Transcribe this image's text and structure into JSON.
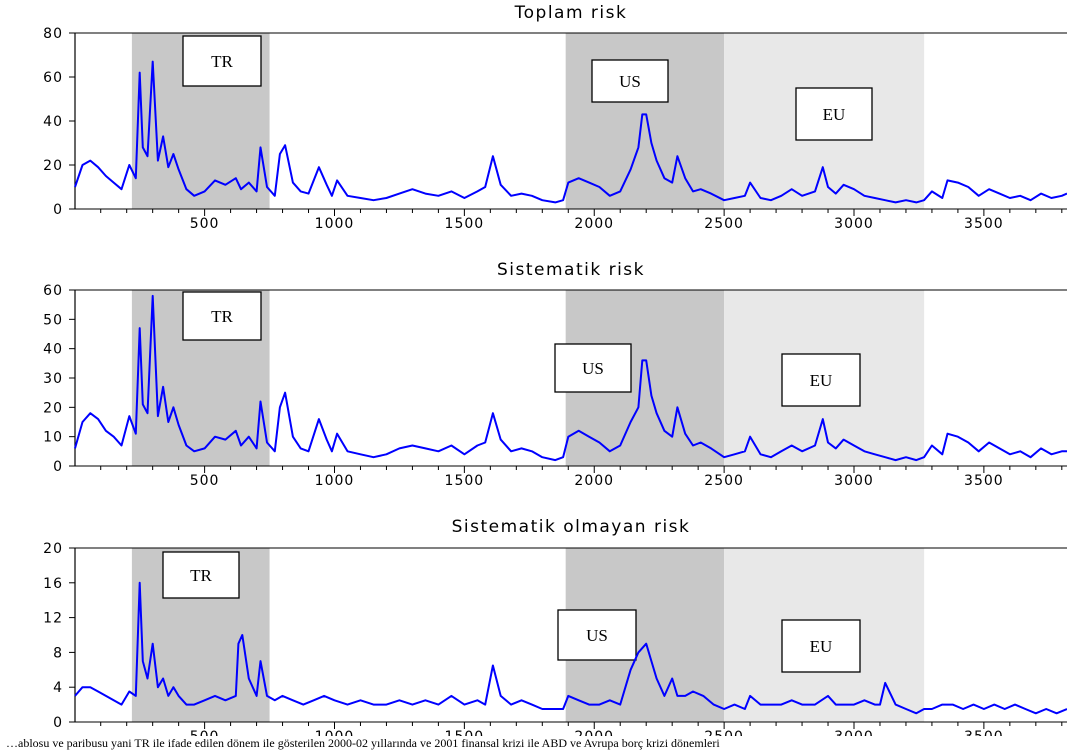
{
  "footer_note": "…ablosu ve paribusu yani TR ile ifade edilen dönem ile gösterilen 2000-02 yıllarında ve 2001 finansal krizi ile ABD ve Avrupa borç krizi dönemleri",
  "colors": {
    "line": "#0000ff",
    "shade_dark": "#c8c8c8",
    "shade_light": "#e8e8e8",
    "box_border": "#000000"
  },
  "chart_data": [
    {
      "type": "line",
      "title": "Toplam risk",
      "xlabel": "",
      "ylabel": "",
      "xlim": [
        1,
        3820
      ],
      "ylim": [
        0,
        80
      ],
      "x_ticks": [
        500,
        1000,
        1500,
        2000,
        2500,
        3000,
        3500
      ],
      "y_ticks": [
        0,
        20,
        40,
        60,
        80
      ],
      "y_tick_labels": [
        "0",
        "20",
        "40",
        "60",
        "80"
      ],
      "regions": [
        {
          "label": "TR",
          "x": [
            220,
            750
          ],
          "shade": "dark"
        },
        {
          "label": "US",
          "x": [
            1890,
            2500
          ],
          "shade": "dark"
        },
        {
          "label": "EU",
          "x": [
            2500,
            3270
          ],
          "shade": "light"
        }
      ],
      "series": [
        {
          "x": [
            1,
            30,
            60,
            90,
            120,
            150,
            180,
            210,
            235,
            250,
            262,
            280,
            300,
            320,
            340,
            360,
            380,
            400,
            430,
            460,
            500,
            540,
            580,
            620,
            640,
            670,
            700,
            715,
            740,
            770,
            790,
            810,
            840,
            870,
            900,
            940,
            970,
            990,
            1010,
            1050,
            1100,
            1150,
            1200,
            1250,
            1300,
            1350,
            1400,
            1450,
            1500,
            1550,
            1580,
            1610,
            1640,
            1680,
            1720,
            1760,
            1800,
            1850,
            1880,
            1900,
            1940,
            1980,
            2020,
            2060,
            2100,
            2140,
            2170,
            2185,
            2200,
            2220,
            2240,
            2270,
            2300,
            2320,
            2350,
            2380,
            2410,
            2450,
            2500,
            2540,
            2580,
            2600,
            2640,
            2680,
            2720,
            2760,
            2800,
            2850,
            2880,
            2900,
            2930,
            2960,
            3000,
            3040,
            3080,
            3120,
            3160,
            3200,
            3240,
            3270,
            3300,
            3340,
            3360,
            3400,
            3440,
            3480,
            3520,
            3560,
            3600,
            3640,
            3680,
            3720,
            3760,
            3800,
            3820
          ],
          "values": [
            10,
            20,
            22,
            19,
            15,
            12,
            9,
            20,
            14,
            62,
            28,
            24,
            67,
            22,
            33,
            19,
            25,
            18,
            9,
            6,
            8,
            13,
            11,
            14,
            9,
            12,
            8,
            28,
            10,
            6,
            25,
            29,
            12,
            8,
            7,
            19,
            11,
            6,
            13,
            6,
            5,
            4,
            5,
            7,
            9,
            7,
            6,
            8,
            5,
            8,
            10,
            24,
            11,
            6,
            7,
            6,
            4,
            3,
            4,
            12,
            14,
            12,
            10,
            6,
            8,
            18,
            28,
            43,
            43,
            30,
            22,
            14,
            12,
            24,
            14,
            8,
            9,
            7,
            4,
            5,
            6,
            12,
            5,
            4,
            6,
            9,
            6,
            8,
            19,
            10,
            7,
            11,
            9,
            6,
            5,
            4,
            3,
            4,
            3,
            4,
            8,
            5,
            13,
            12,
            10,
            6,
            9,
            7,
            5,
            6,
            4,
            7,
            5,
            6,
            7
          ]
        }
      ]
    },
    {
      "type": "line",
      "title": "Sistematik risk",
      "xlabel": "",
      "ylabel": "",
      "xlim": [
        1,
        3820
      ],
      "ylim": [
        0,
        60
      ],
      "x_ticks": [
        500,
        1000,
        1500,
        2000,
        2500,
        3000,
        3500
      ],
      "y_ticks": [
        0,
        10,
        20,
        30,
        40,
        50,
        60
      ],
      "y_tick_labels": [
        "0",
        "10",
        "20",
        "30",
        "40",
        "50",
        "60"
      ],
      "regions": [
        {
          "label": "TR",
          "x": [
            220,
            750
          ],
          "shade": "dark"
        },
        {
          "label": "US",
          "x": [
            1890,
            2500
          ],
          "shade": "dark"
        },
        {
          "label": "EU",
          "x": [
            2500,
            3270
          ],
          "shade": "light"
        }
      ],
      "series": [
        {
          "x": [
            1,
            30,
            60,
            90,
            120,
            150,
            180,
            210,
            235,
            250,
            262,
            280,
            300,
            320,
            340,
            360,
            380,
            400,
            430,
            460,
            500,
            540,
            580,
            620,
            640,
            670,
            700,
            715,
            740,
            770,
            790,
            810,
            840,
            870,
            900,
            940,
            970,
            990,
            1010,
            1050,
            1100,
            1150,
            1200,
            1250,
            1300,
            1350,
            1400,
            1450,
            1500,
            1550,
            1580,
            1610,
            1640,
            1680,
            1720,
            1760,
            1800,
            1850,
            1880,
            1900,
            1940,
            1980,
            2020,
            2060,
            2100,
            2140,
            2170,
            2185,
            2200,
            2220,
            2240,
            2270,
            2300,
            2320,
            2350,
            2380,
            2410,
            2450,
            2500,
            2540,
            2580,
            2600,
            2640,
            2680,
            2720,
            2760,
            2800,
            2850,
            2880,
            2900,
            2930,
            2960,
            3000,
            3040,
            3080,
            3120,
            3160,
            3200,
            3240,
            3270,
            3300,
            3340,
            3360,
            3400,
            3440,
            3480,
            3520,
            3560,
            3600,
            3640,
            3680,
            3720,
            3760,
            3800,
            3820
          ],
          "values": [
            6,
            15,
            18,
            16,
            12,
            10,
            7,
            17,
            11,
            47,
            21,
            18,
            58,
            17,
            27,
            15,
            20,
            14,
            7,
            5,
            6,
            10,
            9,
            12,
            7,
            10,
            6,
            22,
            8,
            5,
            20,
            25,
            10,
            6,
            5,
            16,
            9,
            5,
            11,
            5,
            4,
            3,
            4,
            6,
            7,
            6,
            5,
            7,
            4,
            7,
            8,
            18,
            9,
            5,
            6,
            5,
            3,
            2,
            3,
            10,
            12,
            10,
            8,
            5,
            7,
            15,
            20,
            36,
            36,
            24,
            18,
            12,
            10,
            20,
            11,
            7,
            8,
            6,
            3,
            4,
            5,
            10,
            4,
            3,
            5,
            7,
            5,
            7,
            16,
            8,
            6,
            9,
            7,
            5,
            4,
            3,
            2,
            3,
            2,
            3,
            7,
            4,
            11,
            10,
            8,
            5,
            8,
            6,
            4,
            5,
            3,
            6,
            4,
            5,
            5
          ]
        }
      ]
    },
    {
      "type": "line",
      "title": "Sistematik olmayan risk",
      "xlabel": "",
      "ylabel": "",
      "xlim": [
        1,
        3820
      ],
      "ylim": [
        0,
        20
      ],
      "x_ticks": [
        500,
        1000,
        1500,
        2000,
        2500,
        3000,
        3500
      ],
      "y_ticks": [
        0,
        4,
        8,
        12,
        16,
        20
      ],
      "y_tick_labels": [
        "0",
        "4",
        "8",
        "12",
        "16",
        "20"
      ],
      "regions": [
        {
          "label": "TR",
          "x": [
            220,
            750
          ],
          "shade": "dark"
        },
        {
          "label": "US",
          "x": [
            1890,
            2500
          ],
          "shade": "dark"
        },
        {
          "label": "EU",
          "x": [
            2500,
            3270
          ],
          "shade": "light"
        }
      ],
      "series": [
        {
          "x": [
            1,
            30,
            60,
            90,
            120,
            150,
            180,
            210,
            235,
            250,
            262,
            280,
            300,
            320,
            340,
            360,
            380,
            400,
            430,
            460,
            500,
            540,
            580,
            620,
            630,
            645,
            670,
            700,
            715,
            740,
            770,
            800,
            840,
            880,
            920,
            960,
            1000,
            1050,
            1100,
            1150,
            1200,
            1250,
            1300,
            1350,
            1400,
            1450,
            1500,
            1550,
            1580,
            1610,
            1640,
            1680,
            1720,
            1760,
            1800,
            1850,
            1880,
            1900,
            1940,
            1980,
            2020,
            2060,
            2100,
            2140,
            2170,
            2200,
            2220,
            2240,
            2270,
            2300,
            2320,
            2350,
            2380,
            2420,
            2460,
            2500,
            2540,
            2580,
            2600,
            2640,
            2680,
            2720,
            2760,
            2800,
            2850,
            2900,
            2930,
            2960,
            3000,
            3040,
            3080,
            3100,
            3120,
            3160,
            3200,
            3240,
            3270,
            3300,
            3340,
            3380,
            3420,
            3460,
            3500,
            3540,
            3580,
            3620,
            3660,
            3700,
            3740,
            3780,
            3820
          ],
          "values": [
            3,
            4,
            4,
            3.5,
            3,
            2.5,
            2,
            3.5,
            3,
            16,
            7,
            5,
            9,
            4,
            5,
            3,
            4,
            3,
            2,
            2,
            2.5,
            3,
            2.5,
            3,
            9,
            10,
            5,
            3,
            7,
            3,
            2.5,
            3,
            2.5,
            2,
            2.5,
            3,
            2.5,
            2,
            2.5,
            2,
            2,
            2.5,
            2,
            2.5,
            2,
            3,
            2,
            2.5,
            2,
            6.5,
            3,
            2,
            2.5,
            2,
            1.5,
            1.5,
            1.5,
            3,
            2.5,
            2,
            2,
            2.5,
            2,
            6,
            8,
            9,
            7,
            5,
            3,
            5,
            3,
            3,
            3.5,
            3,
            2,
            1.5,
            2,
            1.5,
            3,
            2,
            2,
            2,
            2.5,
            2,
            2,
            3,
            2,
            2,
            2,
            2.5,
            2,
            2,
            4.5,
            2,
            1.5,
            1,
            1.5,
            1.5,
            2,
            2,
            1.5,
            2,
            1.5,
            2,
            1.5,
            2,
            1.5,
            1,
            1.5,
            1,
            1.5
          ]
        }
      ]
    }
  ]
}
